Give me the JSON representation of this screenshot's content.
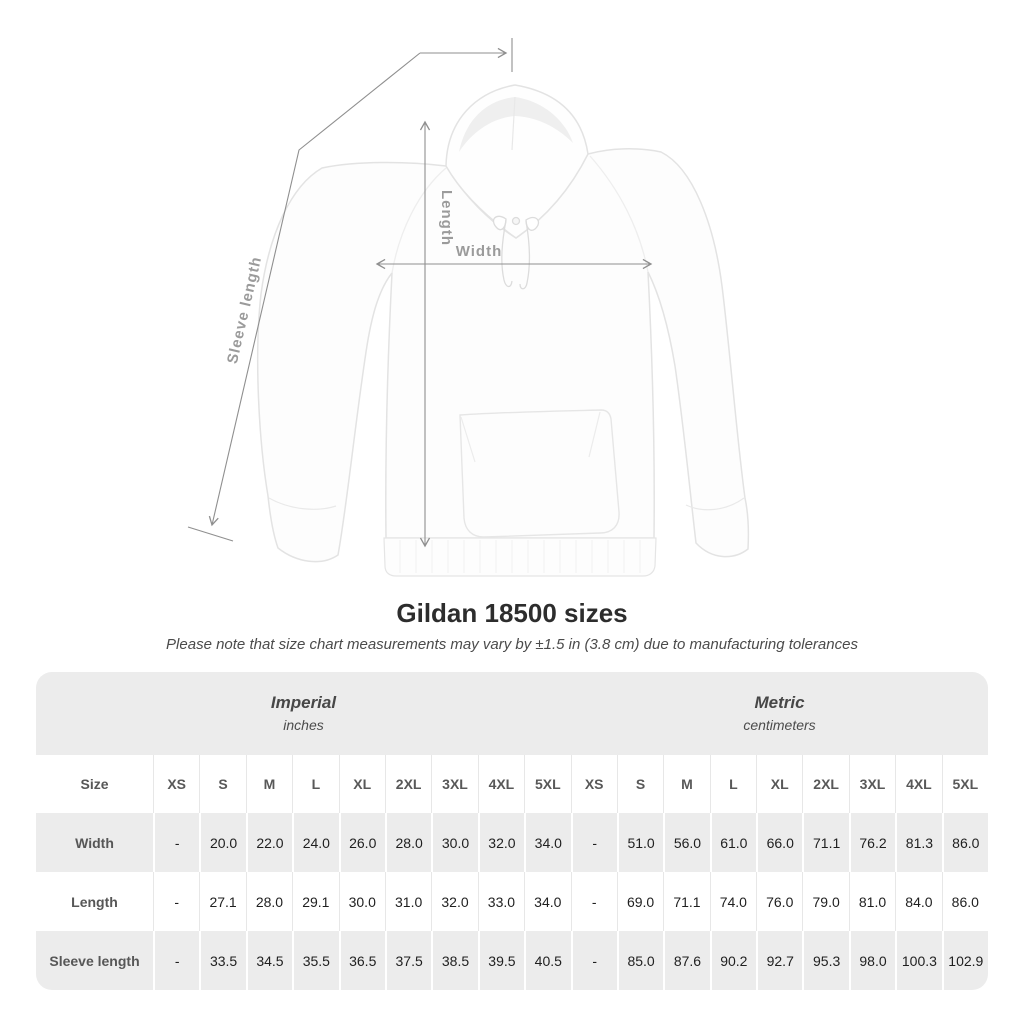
{
  "figure": {
    "width_label": "Width",
    "length_label": "Length",
    "sleeve_length_label": "Sleeve length"
  },
  "colors": {
    "measure_line": "#8f8f8f",
    "measure_label": "#9b9b9b",
    "table_band": "#ececec",
    "title_text": "#2d2d2d"
  },
  "chart_data": {
    "type": "table",
    "title": "Gildan 18500 sizes",
    "subtitle": "Please note that size chart measurements may vary by ±1.5 in (3.8 cm) due to manufacturing tolerances",
    "column_groups": [
      {
        "label": "Imperial",
        "unit": "inches",
        "columns_spanned": 9
      },
      {
        "label": "Metric",
        "unit": "centimeters",
        "columns_spanned": 9
      }
    ],
    "corner_header": "Size",
    "size_headers": [
      "XS",
      "S",
      "M",
      "L",
      "XL",
      "2XL",
      "3XL",
      "4XL",
      "5XL",
      "XS",
      "S",
      "M",
      "L",
      "XL",
      "2XL",
      "3XL",
      "4XL",
      "5XL"
    ],
    "rows": [
      {
        "label": "Width",
        "values": [
          "-",
          "20.0",
          "22.0",
          "24.0",
          "26.0",
          "28.0",
          "30.0",
          "32.0",
          "34.0",
          "-",
          "51.0",
          "56.0",
          "61.0",
          "66.0",
          "71.1",
          "76.2",
          "81.3",
          "86.0"
        ]
      },
      {
        "label": "Length",
        "values": [
          "-",
          "27.1",
          "28.0",
          "29.1",
          "30.0",
          "31.0",
          "32.0",
          "33.0",
          "34.0",
          "-",
          "69.0",
          "71.1",
          "74.0",
          "76.0",
          "79.0",
          "81.0",
          "84.0",
          "86.0"
        ]
      },
      {
        "label": "Sleeve length",
        "values": [
          "-",
          "33.5",
          "34.5",
          "35.5",
          "36.5",
          "37.5",
          "38.5",
          "39.5",
          "40.5",
          "-",
          "85.0",
          "87.6",
          "90.2",
          "92.7",
          "95.3",
          "98.0",
          "100.3",
          "102.9"
        ]
      }
    ]
  }
}
